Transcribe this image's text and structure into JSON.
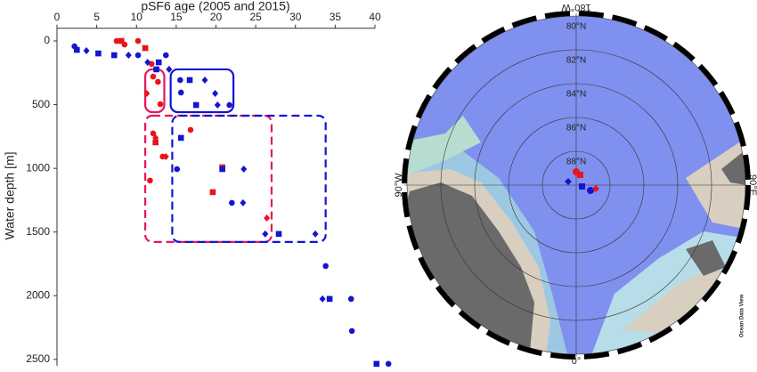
{
  "chart_data": {
    "type": "scatter",
    "title": "pSF6 age (2005 and 2015)",
    "y_label": "Water depth [m]",
    "xlim": [
      0,
      40
    ],
    "xticks": [
      0,
      5,
      10,
      15,
      20,
      25,
      30,
      35,
      40
    ],
    "ylim": [
      -100,
      2550
    ],
    "yticks": [
      0,
      500,
      1000,
      1500,
      2000,
      2500
    ],
    "y_inverted": true,
    "series": [
      {
        "color": "#e8141c",
        "marker": "circle",
        "x": [
          7.5,
          8.5,
          10.2,
          11.9,
          12.1,
          12.7,
          13.0,
          12.1,
          13.3,
          16.8,
          11.7
        ],
        "values": [
          0,
          28,
          0,
          180,
          280,
          321,
          496,
          726,
          908,
          698,
          1096
        ]
      },
      {
        "color": "#e8141c",
        "marker": "square",
        "x": [
          8.1,
          11.1,
          12.4,
          19.6,
          20.8
        ],
        "values": [
          0,
          56,
          796,
          1187,
          992
        ]
      },
      {
        "color": "#e8141c",
        "marker": "diamond",
        "x": [
          11.3,
          12.4,
          13.7,
          26.4
        ],
        "values": [
          412,
          761,
          908,
          1390
        ]
      },
      {
        "color": "#1414d2",
        "marker": "circle",
        "x": [
          2.2,
          10.2,
          13.7,
          15.5,
          15.6,
          21.7,
          15.1,
          22.0,
          33.8,
          37.0,
          37.1,
          41.7
        ],
        "values": [
          42,
          112,
          112,
          307,
          405,
          503,
          1006,
          1271,
          1767,
          2025,
          2277,
          2535
        ]
      },
      {
        "color": "#1414d2",
        "marker": "square",
        "x": [
          2.5,
          5.2,
          7.2,
          12.8,
          12.5,
          16.7,
          17.5,
          15.6,
          20.8,
          27.9,
          34.3,
          40.2
        ],
        "values": [
          70,
          98,
          112,
          168,
          223,
          307,
          503,
          761,
          1006,
          1515,
          2025,
          2535
        ]
      },
      {
        "color": "#1414d2",
        "marker": "diamond",
        "x": [
          3.7,
          9.0,
          11.4,
          14.1,
          18.6,
          20.2,
          19.9,
          23.5,
          23.4,
          26.2,
          32.5,
          33.4
        ],
        "values": [
          77,
          112,
          168,
          223,
          307,
          503,
          412,
          1006,
          1271,
          1515,
          1515,
          2025
        ]
      }
    ],
    "regions": [
      {
        "color": "#e8145a",
        "dashed": false,
        "x": [
          11.1,
          13.5
        ],
        "y": [
          223,
          559
        ]
      },
      {
        "color": "#1414d2",
        "dashed": false,
        "x": [
          14.3,
          22.2
        ],
        "y": [
          223,
          559
        ]
      },
      {
        "color": "#e8145a",
        "dashed": true,
        "x": [
          11.1,
          27.0
        ],
        "y": [
          587,
          1578
        ]
      },
      {
        "color": "#1414d2",
        "dashed": true,
        "x": [
          14.5,
          33.8
        ],
        "y": [
          587,
          1578
        ]
      }
    ]
  },
  "map": {
    "lat_labels": [
      "80°N",
      "82°N",
      "84°N",
      "86°N",
      "88°N"
    ],
    "top_label": "180°W",
    "right_label": "90°E",
    "left_label": "90°W",
    "bottom_label": "0°",
    "credit": "Ocean Data View"
  }
}
